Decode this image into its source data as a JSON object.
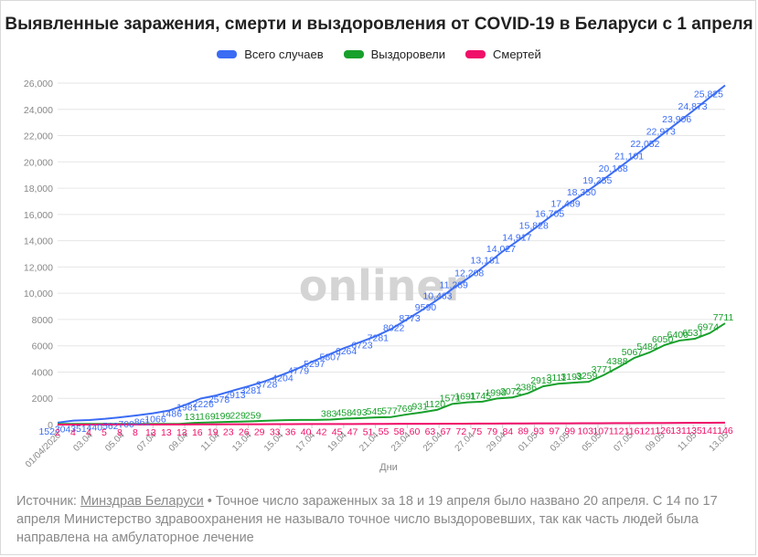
{
  "frame": {
    "name": "chart-frame"
  },
  "title": "Выявленные заражения, смерти и выздоровления от COVID-19 в Беларуси с 1 апреля",
  "watermark": "onliner",
  "source": {
    "prefix": "Источник: ",
    "link_text": "Минздрав Беларуси",
    "text": " • Точное число зараженных за 18 и 19 апреля было названо 20 апреля. С 14 по 17 апреля Министерство здравоохранения не называло точное число выздоровевших, так как часть людей была направлена на амбулаторное лечение"
  },
  "colors": {
    "cases": "#3a6cf4",
    "recovered": "#17a02b",
    "deaths": "#f0106a",
    "grid": "#e6e6e6",
    "axis_text": "#888888"
  },
  "chart_data": {
    "type": "line",
    "title": "Выявленные заражения, смерти и выздоровления от COVID-19 в Беларуси с 1 апреля",
    "xlabel": "Дни",
    "ylabel": "",
    "ylim": [
      0,
      26000
    ],
    "y_ticks": [
      "0",
      "2000",
      "4000",
      "6000",
      "8000",
      "10,000",
      "12,000",
      "14,000",
      "16,000",
      "18,000",
      "20,000",
      "22,000",
      "24,000",
      "26,000"
    ],
    "x_ticks": [
      "01/04/2020",
      "03.04",
      "05.04",
      "07.04",
      "09.04",
      "11.04",
      "13.04",
      "15.04",
      "17.04",
      "19.04",
      "21.04",
      "23.04",
      "25.04",
      "27.04",
      "29.04",
      "01.05",
      "03.05",
      "05.05",
      "07.05",
      "09.05",
      "11.05",
      "13.05"
    ],
    "grid": true,
    "legend_position": "top-center",
    "series": [
      {
        "name": "Всего случаев",
        "values": [
          152,
          304,
          351,
          440,
          562,
          700,
          861,
          1066,
          1486,
          1981,
          2226,
          2578,
          2913,
          3281,
          3728,
          4204,
          4779,
          5297,
          5807,
          6264,
          6723,
          7281,
          8022,
          8773,
          9590,
          10463,
          11289,
          12208,
          13181,
          14027,
          14917,
          15828,
          16705,
          17489,
          18350,
          19255,
          20168,
          21101,
          22052,
          22973,
          23906,
          24873,
          25825
        ],
        "labels": [
          "152",
          "304",
          "351",
          "440",
          "562",
          "700",
          "861",
          "1066",
          "1486",
          "1981",
          "2226",
          "2578",
          "2913",
          "3281",
          "3728",
          "4204",
          "4779",
          "5297",
          "5807",
          "6264",
          "6723",
          "7281",
          "8022",
          "8773",
          "9590",
          "10,463",
          "11,289",
          "12,208",
          "13,181",
          "14,027",
          "14,917",
          "15,828",
          "16,705",
          "17,489",
          "18,350",
          "19,255",
          "20,168",
          "21,101",
          "22,052",
          "22,973",
          "23,906",
          "24,873",
          "25,825"
        ]
      },
      {
        "name": "Выздоровели",
        "values": [
          53,
          53,
          53,
          53,
          53,
          53,
          53,
          53,
          53,
          131,
          169,
          199,
          229,
          259,
          300,
          340,
          360,
          360,
          383,
          458,
          493,
          545,
          577,
          769,
          931,
          1120,
          1571,
          1691,
          1745,
          1993,
          2072,
          2386,
          2913,
          3111,
          3193,
          3259,
          3771,
          4388,
          5067,
          5484,
          6050,
          6400,
          6531,
          6974,
          7711
        ],
        "labels": [
          "",
          "",
          "",
          "",
          "",
          "",
          "",
          "",
          "",
          "131",
          "169",
          "199",
          "229",
          "259",
          "",
          "",
          "",
          "",
          "383",
          "458",
          "493",
          "545",
          "577",
          "769",
          "931",
          "1120",
          "1571",
          "1691",
          "1745",
          "1993",
          "2072",
          "2386",
          "2913",
          "3111",
          "3193",
          "3259",
          "3771",
          "4388",
          "5067",
          "5484",
          "6050",
          "6400",
          "6531",
          "6974",
          "7711"
        ]
      },
      {
        "name": "Смертей",
        "values": [
          2,
          4,
          4,
          5,
          8,
          8,
          13,
          13,
          13,
          16,
          19,
          23,
          26,
          29,
          33,
          36,
          40,
          42,
          45,
          47,
          51,
          55,
          58,
          60,
          63,
          67,
          72,
          75,
          79,
          84,
          89,
          93,
          97,
          99,
          103,
          107,
          112,
          116,
          121,
          126,
          131,
          135,
          141,
          146
        ],
        "labels": [
          "2",
          "4",
          "4",
          "5",
          "8",
          "8",
          "13",
          "13",
          "13",
          "16",
          "19",
          "23",
          "26",
          "29",
          "33",
          "36",
          "40",
          "42",
          "45",
          "47",
          "51",
          "55",
          "58",
          "60",
          "63",
          "67",
          "72",
          "75",
          "79",
          "84",
          "89",
          "93",
          "97",
          "99",
          "103",
          "107",
          "112",
          "116",
          "121",
          "126",
          "131",
          "135",
          "141",
          "146"
        ]
      }
    ]
  }
}
